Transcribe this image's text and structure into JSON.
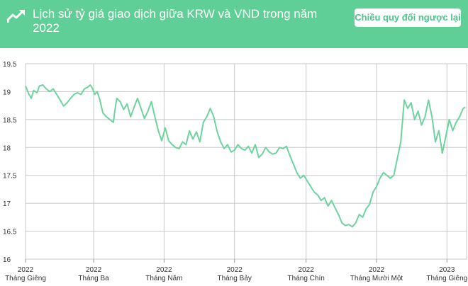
{
  "header": {
    "title": "Lịch sử tỷ giá giao dịch giữa KRW và VND trong năm 2022",
    "swap_label": "Chiều quy đổi ngược lại",
    "icon": "trend-chart-icon"
  },
  "colors": {
    "accent": "#5fcf97",
    "line": "#6fd39e",
    "grid": "#c8c8c8",
    "axis": "#999999"
  },
  "chart_data": {
    "type": "line",
    "title": "Lịch sử tỷ giá giao dịch giữa KRW và VND trong năm 2022",
    "ylim": [
      16,
      19.5
    ],
    "yticks": [
      "19.5",
      "19",
      "18.5",
      "18",
      "17.5",
      "17",
      "16.5",
      "16"
    ],
    "xlim": [
      "2022-01-01",
      "2023-01-18"
    ],
    "xticks": [
      {
        "date": "2022-01-01",
        "year": "2022",
        "month": "Tháng Giêng"
      },
      {
        "date": "2022-03-01",
        "year": "2022",
        "month": "Tháng Ba"
      },
      {
        "date": "2022-05-01",
        "year": "2022",
        "month": "Tháng Năm"
      },
      {
        "date": "2022-07-01",
        "year": "2022",
        "month": "Tháng Bảy"
      },
      {
        "date": "2022-09-01",
        "year": "2022",
        "month": "Tháng Chín"
      },
      {
        "date": "2022-11-01",
        "year": "2022",
        "month": "Tháng Mười Một"
      },
      {
        "date": "2023-01-01",
        "year": "2023",
        "month": "Tháng Giêng"
      }
    ],
    "grid": true,
    "series": [
      {
        "points": [
          [
            "2022-01-01",
            19.1
          ],
          [
            "2022-01-04",
            18.95
          ],
          [
            "2022-01-06",
            18.88
          ],
          [
            "2022-01-08",
            19.02
          ],
          [
            "2022-01-11",
            18.98
          ],
          [
            "2022-01-13",
            19.1
          ],
          [
            "2022-01-16",
            19.12
          ],
          [
            "2022-01-19",
            19.05
          ],
          [
            "2022-01-22",
            19.0
          ],
          [
            "2022-01-25",
            19.05
          ],
          [
            "2022-01-28",
            18.95
          ],
          [
            "2022-01-31",
            18.85
          ],
          [
            "2022-02-03",
            18.74
          ],
          [
            "2022-02-06",
            18.8
          ],
          [
            "2022-02-09",
            18.88
          ],
          [
            "2022-02-12",
            18.95
          ],
          [
            "2022-02-15",
            18.98
          ],
          [
            "2022-02-18",
            18.95
          ],
          [
            "2022-02-21",
            19.05
          ],
          [
            "2022-02-24",
            19.08
          ],
          [
            "2022-02-26",
            19.12
          ],
          [
            "2022-02-28",
            19.06
          ],
          [
            "2022-03-02",
            18.95
          ],
          [
            "2022-03-04",
            19.0
          ],
          [
            "2022-03-06",
            18.88
          ],
          [
            "2022-03-09",
            18.62
          ],
          [
            "2022-03-12",
            18.55
          ],
          [
            "2022-03-15",
            18.5
          ],
          [
            "2022-03-18",
            18.45
          ],
          [
            "2022-03-21",
            18.88
          ],
          [
            "2022-03-24",
            18.82
          ],
          [
            "2022-03-27",
            18.68
          ],
          [
            "2022-03-30",
            18.78
          ],
          [
            "2022-04-02",
            18.55
          ],
          [
            "2022-04-05",
            18.72
          ],
          [
            "2022-04-08",
            18.88
          ],
          [
            "2022-04-11",
            18.7
          ],
          [
            "2022-04-14",
            18.52
          ],
          [
            "2022-04-17",
            18.65
          ],
          [
            "2022-04-20",
            18.82
          ],
          [
            "2022-04-23",
            18.55
          ],
          [
            "2022-04-26",
            18.3
          ],
          [
            "2022-04-29",
            18.12
          ],
          [
            "2022-05-02",
            18.35
          ],
          [
            "2022-05-05",
            18.12
          ],
          [
            "2022-05-08",
            18.05
          ],
          [
            "2022-05-11",
            18.0
          ],
          [
            "2022-05-14",
            17.98
          ],
          [
            "2022-05-17",
            18.1
          ],
          [
            "2022-05-20",
            18.05
          ],
          [
            "2022-05-23",
            18.3
          ],
          [
            "2022-05-26",
            18.15
          ],
          [
            "2022-05-29",
            18.28
          ],
          [
            "2022-06-01",
            18.1
          ],
          [
            "2022-06-04",
            18.45
          ],
          [
            "2022-06-07",
            18.55
          ],
          [
            "2022-06-10",
            18.7
          ],
          [
            "2022-06-13",
            18.55
          ],
          [
            "2022-06-16",
            18.28
          ],
          [
            "2022-06-19",
            18.1
          ],
          [
            "2022-06-22",
            17.98
          ],
          [
            "2022-06-25",
            18.05
          ],
          [
            "2022-06-28",
            17.92
          ],
          [
            "2022-07-01",
            17.95
          ],
          [
            "2022-07-04",
            18.05
          ],
          [
            "2022-07-07",
            17.98
          ],
          [
            "2022-07-10",
            17.95
          ],
          [
            "2022-07-13",
            18.02
          ],
          [
            "2022-07-16",
            17.9
          ],
          [
            "2022-07-19",
            18.05
          ],
          [
            "2022-07-22",
            17.82
          ],
          [
            "2022-07-25",
            17.88
          ],
          [
            "2022-07-28",
            18.0
          ],
          [
            "2022-07-31",
            17.92
          ],
          [
            "2022-08-03",
            17.88
          ],
          [
            "2022-08-06",
            17.9
          ],
          [
            "2022-08-09",
            18.0
          ],
          [
            "2022-08-12",
            17.98
          ],
          [
            "2022-08-15",
            18.02
          ],
          [
            "2022-08-18",
            17.85
          ],
          [
            "2022-08-21",
            17.7
          ],
          [
            "2022-08-24",
            17.55
          ],
          [
            "2022-08-27",
            17.45
          ],
          [
            "2022-08-30",
            17.5
          ],
          [
            "2022-09-02",
            17.4
          ],
          [
            "2022-09-05",
            17.3
          ],
          [
            "2022-09-08",
            17.2
          ],
          [
            "2022-09-11",
            17.15
          ],
          [
            "2022-09-14",
            17.05
          ],
          [
            "2022-09-17",
            17.1
          ],
          [
            "2022-09-20",
            16.95
          ],
          [
            "2022-09-23",
            17.05
          ],
          [
            "2022-09-26",
            16.92
          ],
          [
            "2022-09-29",
            16.8
          ],
          [
            "2022-10-02",
            16.65
          ],
          [
            "2022-10-05",
            16.6
          ],
          [
            "2022-10-08",
            16.62
          ],
          [
            "2022-10-11",
            16.58
          ],
          [
            "2022-10-14",
            16.65
          ],
          [
            "2022-10-17",
            16.8
          ],
          [
            "2022-10-20",
            16.75
          ],
          [
            "2022-10-23",
            16.9
          ],
          [
            "2022-10-26",
            16.98
          ],
          [
            "2022-10-29",
            17.2
          ],
          [
            "2022-11-01",
            17.3
          ],
          [
            "2022-11-04",
            17.45
          ],
          [
            "2022-11-07",
            17.55
          ],
          [
            "2022-11-10",
            17.5
          ],
          [
            "2022-11-13",
            17.45
          ],
          [
            "2022-11-16",
            17.5
          ],
          [
            "2022-11-19",
            17.8
          ],
          [
            "2022-11-22",
            18.1
          ],
          [
            "2022-11-25",
            18.85
          ],
          [
            "2022-11-28",
            18.7
          ],
          [
            "2022-12-01",
            18.8
          ],
          [
            "2022-12-04",
            18.5
          ],
          [
            "2022-12-07",
            18.65
          ],
          [
            "2022-12-10",
            18.4
          ],
          [
            "2022-12-13",
            18.55
          ],
          [
            "2022-12-16",
            18.85
          ],
          [
            "2022-12-19",
            18.55
          ],
          [
            "2022-12-22",
            18.1
          ],
          [
            "2022-12-25",
            18.3
          ],
          [
            "2022-12-28",
            17.9
          ],
          [
            "2022-12-31",
            18.2
          ],
          [
            "2023-01-03",
            18.5
          ],
          [
            "2023-01-06",
            18.3
          ],
          [
            "2023-01-09",
            18.45
          ],
          [
            "2023-01-12",
            18.55
          ],
          [
            "2023-01-15",
            18.7
          ],
          [
            "2023-01-17",
            18.72
          ]
        ]
      }
    ]
  }
}
